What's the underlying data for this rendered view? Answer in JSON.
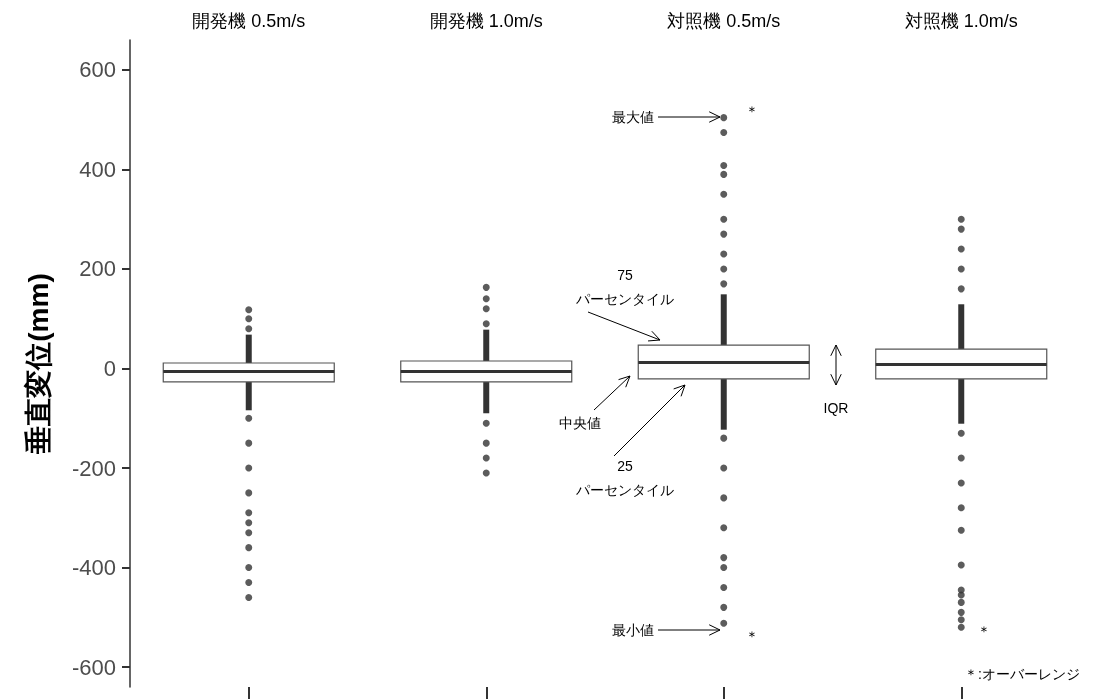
{
  "chart_data": {
    "type": "box",
    "ylabel": "垂直変位(mm)",
    "categories": [
      "開発機 0.5m/s",
      "開発機 1.0m/s",
      "対照機 0.5m/s",
      "対照機 1.0m/s"
    ],
    "boxes": [
      {
        "low": -84,
        "q1": -27,
        "median": -6,
        "q3": 11,
        "high": 68,
        "outliers": [
          80,
          100,
          118,
          -100,
          -150,
          -200,
          -250,
          -290,
          -310,
          -330,
          -360,
          -400,
          -430,
          -460
        ]
      },
      {
        "low": -90,
        "q1": -27,
        "median": -6,
        "q3": 15,
        "high": 78,
        "outliers": [
          90,
          120,
          140,
          163,
          -110,
          -150,
          -180,
          -210
        ]
      },
      {
        "low": -123,
        "q1": -21,
        "median": 12,
        "q3": 47,
        "high": 149,
        "outliers": [
          504,
          474,
          408,
          390,
          350,
          300,
          270,
          230,
          200,
          170,
          -140,
          -200,
          -260,
          -320,
          -380,
          -400,
          -440,
          -480,
          -512
        ]
      },
      {
        "low": -111,
        "q1": -21,
        "median": 8,
        "q3": 39,
        "high": 129,
        "outliers": [
          160,
          200,
          240,
          280,
          300,
          -130,
          -180,
          -230,
          -280,
          -325,
          -395,
          -445,
          -455,
          -470,
          -490,
          -505,
          -520
        ]
      }
    ],
    "ylim": [
      -640,
      660
    ],
    "yticks": [
      -600,
      -400,
      -200,
      0,
      200,
      400,
      600
    ],
    "grid": false,
    "annotations": [
      "最大値",
      "最小値",
      "75\nパーセンタイル",
      "中央値",
      "25\nパーセンタイル",
      "IQR",
      "＊",
      "＊",
      "＊",
      "＊:オーバーレンジ"
    ]
  }
}
